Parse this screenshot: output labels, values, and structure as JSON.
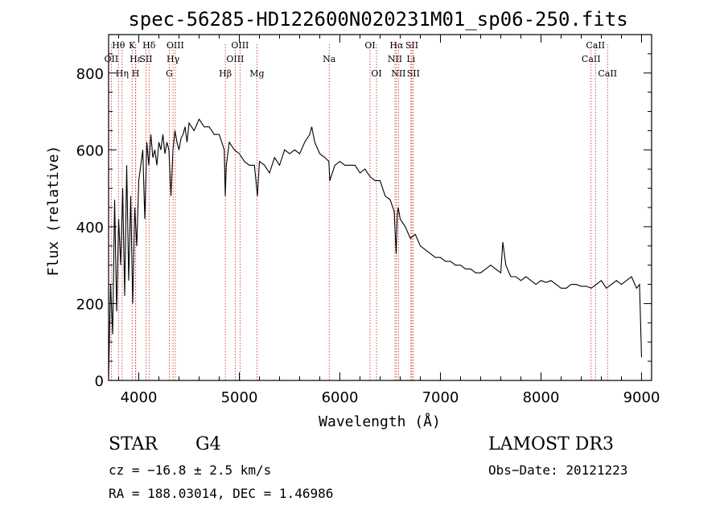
{
  "chart_data": {
    "type": "line",
    "title": "spec-56285-HD122600N020231M01_sp06-250.fits",
    "xlabel": "Wavelength (Å)",
    "ylabel": "Flux (relative)",
    "xlim": [
      3700,
      9100
    ],
    "ylim": [
      0,
      900
    ],
    "xticks": [
      4000,
      5000,
      6000,
      7000,
      8000,
      9000
    ],
    "yticks": [
      0,
      200,
      400,
      600,
      800
    ],
    "series": [
      {
        "name": "flux",
        "x": [
          3700,
          3720,
          3740,
          3760,
          3780,
          3800,
          3820,
          3840,
          3860,
          3880,
          3900,
          3920,
          3940,
          3960,
          3980,
          4000,
          4020,
          4040,
          4060,
          4080,
          4100,
          4120,
          4140,
          4160,
          4180,
          4200,
          4220,
          4240,
          4260,
          4280,
          4300,
          4320,
          4340,
          4360,
          4380,
          4400,
          4420,
          4440,
          4460,
          4480,
          4500,
          4550,
          4600,
          4650,
          4700,
          4750,
          4800,
          4850,
          4860,
          4870,
          4900,
          4950,
          5000,
          5050,
          5100,
          5150,
          5180,
          5200,
          5250,
          5300,
          5350,
          5400,
          5450,
          5500,
          5550,
          5600,
          5650,
          5700,
          5720,
          5750,
          5800,
          5850,
          5890,
          5900,
          5950,
          6000,
          6050,
          6100,
          6150,
          6200,
          6250,
          6300,
          6350,
          6400,
          6450,
          6500,
          6540,
          6560,
          6570,
          6580,
          6600,
          6650,
          6700,
          6750,
          6800,
          6850,
          6900,
          6950,
          7000,
          7050,
          7100,
          7150,
          7200,
          7250,
          7300,
          7350,
          7400,
          7450,
          7500,
          7550,
          7600,
          7620,
          7650,
          7700,
          7750,
          7800,
          7850,
          7900,
          7950,
          8000,
          8050,
          8100,
          8150,
          8200,
          8250,
          8300,
          8350,
          8400,
          8450,
          8500,
          8550,
          8600,
          8650,
          8700,
          8750,
          8800,
          8850,
          8900,
          8950,
          8980,
          9000
        ],
        "y": [
          10,
          250,
          120,
          470,
          180,
          420,
          300,
          500,
          220,
          560,
          260,
          480,
          200,
          450,
          350,
          520,
          560,
          600,
          420,
          620,
          560,
          640,
          580,
          600,
          560,
          620,
          600,
          640,
          590,
          620,
          600,
          480,
          600,
          650,
          620,
          600,
          630,
          640,
          660,
          620,
          670,
          650,
          680,
          660,
          660,
          640,
          640,
          600,
          480,
          560,
          620,
          600,
          590,
          570,
          560,
          560,
          480,
          570,
          560,
          540,
          580,
          560,
          600,
          590,
          600,
          590,
          620,
          640,
          660,
          620,
          590,
          580,
          570,
          520,
          560,
          570,
          560,
          560,
          560,
          540,
          550,
          530,
          520,
          520,
          480,
          470,
          440,
          330,
          430,
          450,
          420,
          400,
          370,
          380,
          350,
          340,
          330,
          320,
          320,
          310,
          310,
          300,
          300,
          290,
          290,
          280,
          280,
          290,
          300,
          290,
          280,
          360,
          300,
          270,
          270,
          260,
          270,
          260,
          250,
          260,
          255,
          260,
          250,
          240,
          240,
          250,
          250,
          245,
          245,
          240,
          250,
          260,
          240,
          250,
          260,
          250,
          260,
          270,
          240,
          250,
          60
        ]
      }
    ],
    "line_markers": [
      {
        "label": "OII",
        "x": 3727,
        "row": 2
      },
      {
        "label": "Hθ",
        "x": 3798,
        "row": 1
      },
      {
        "label": "Hη",
        "x": 3835,
        "row": 3
      },
      {
        "label": "K",
        "x": 3934,
        "row": 1
      },
      {
        "label": "H",
        "x": 3968,
        "row": 3
      },
      {
        "label": "Hε",
        "x": 3970,
        "row": 2
      },
      {
        "label": "Hδ",
        "x": 4102,
        "row": 1
      },
      {
        "label": "SII",
        "x": 4072,
        "row": 2
      },
      {
        "label": "G",
        "x": 4304,
        "row": 3
      },
      {
        "label": "Hγ",
        "x": 4341,
        "row": 2
      },
      {
        "label": "OIII",
        "x": 4363,
        "row": 1
      },
      {
        "label": "Hβ",
        "x": 4861,
        "row": 3
      },
      {
        "label": "OIII",
        "x": 4959,
        "row": 2
      },
      {
        "label": "OIII",
        "x": 5007,
        "row": 1
      },
      {
        "label": "Mg",
        "x": 5175,
        "row": 3
      },
      {
        "label": "Na",
        "x": 5894,
        "row": 2
      },
      {
        "label": "OI",
        "x": 6300,
        "row": 1
      },
      {
        "label": "OI",
        "x": 6364,
        "row": 3
      },
      {
        "label": "NII",
        "x": 6548,
        "row": 2
      },
      {
        "label": "Hα",
        "x": 6563,
        "row": 1
      },
      {
        "label": "NII",
        "x": 6583,
        "row": 3
      },
      {
        "label": "Li",
        "x": 6707,
        "row": 2
      },
      {
        "label": "SII",
        "x": 6716,
        "row": 1
      },
      {
        "label": "SII",
        "x": 6731,
        "row": 3
      },
      {
        "label": "CaII",
        "x": 8498,
        "row": 2
      },
      {
        "label": "CaII",
        "x": 8542,
        "row": 1
      },
      {
        "label": "CaII",
        "x": 8662,
        "row": 3
      }
    ]
  },
  "info": {
    "class": "STAR",
    "subclass": "G4",
    "survey": "LAMOST DR3",
    "cz": "cz = −16.8 ± 2.5 km/s",
    "obs_date": "Obs−Date: 20121223",
    "coords": "RA = 188.03014, DEC =    1.46986"
  },
  "colors": {
    "marker": "#cc2222",
    "line": "#000000"
  }
}
